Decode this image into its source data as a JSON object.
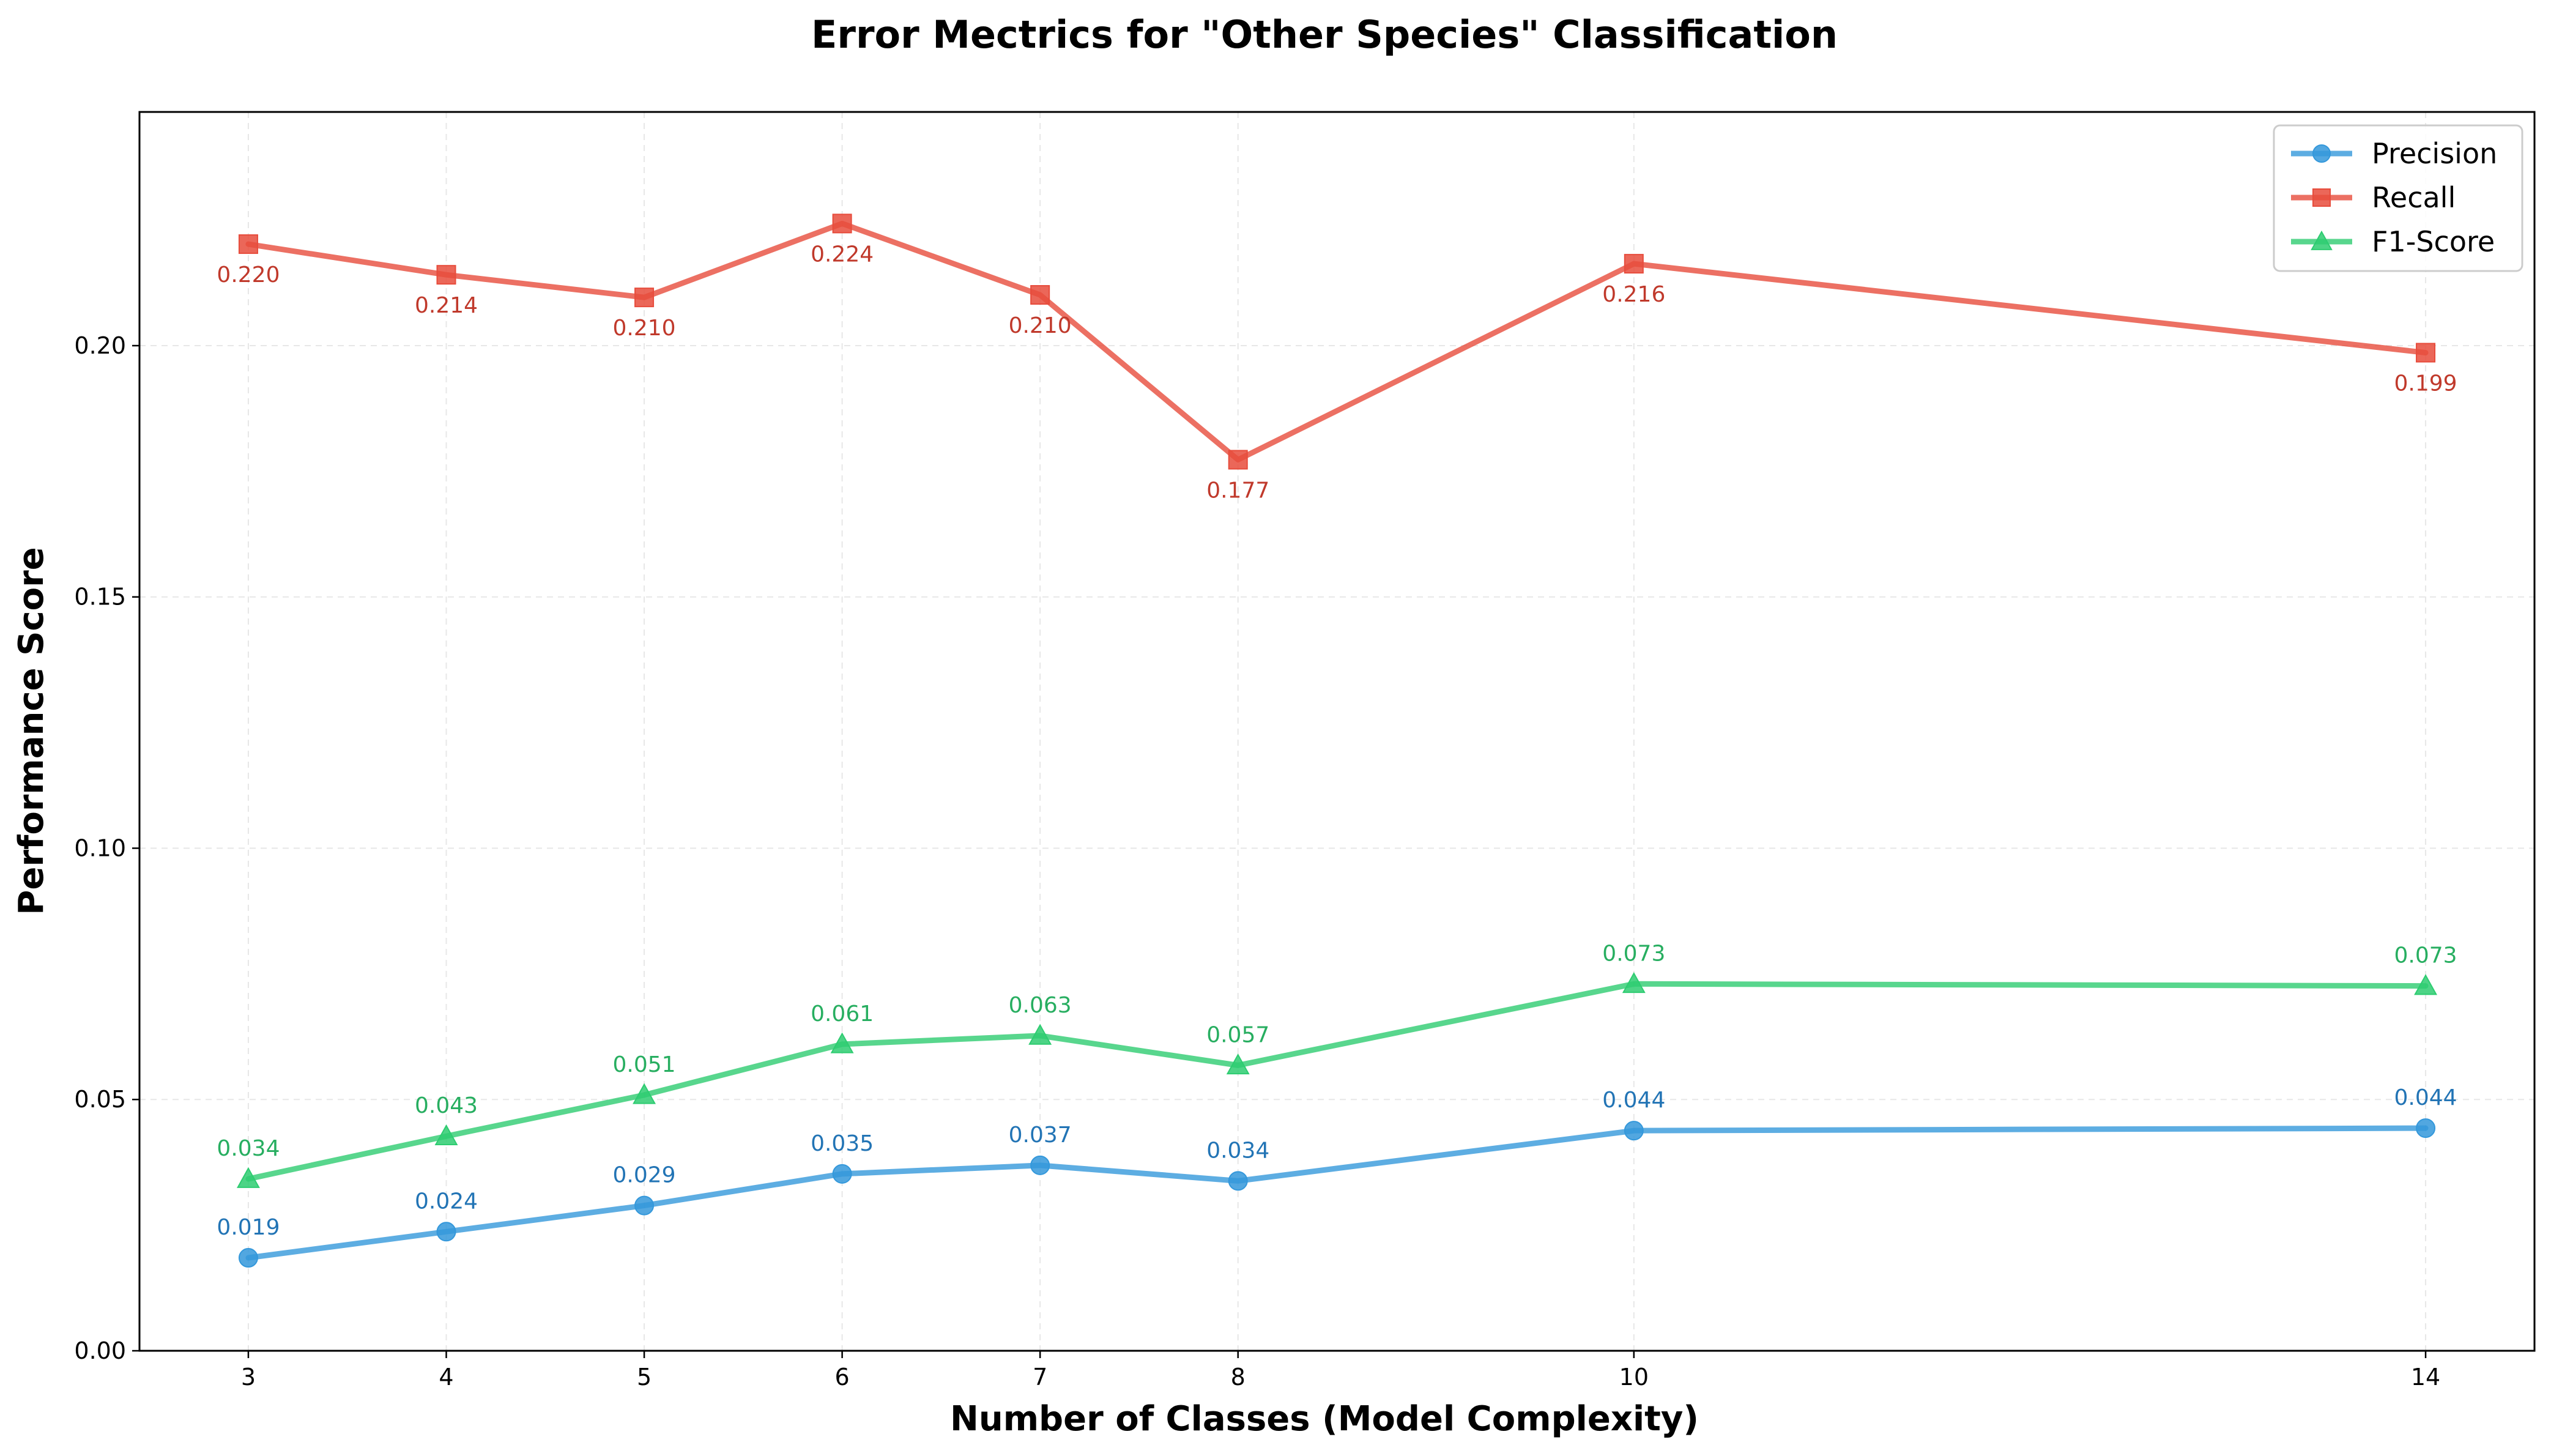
{
  "chart_data": {
    "type": "line",
    "title": "Error Mectrics for \"Other Species\" Classification",
    "xlabel": "Number of Classes (Model Complexity)",
    "ylabel": "Performance Score",
    "x": [
      3,
      4,
      5,
      6,
      7,
      8,
      10,
      14
    ],
    "xlim": [
      2.45,
      14.55
    ],
    "ylim": [
      0,
      0.2465
    ],
    "yticks": [
      0.0,
      0.05,
      0.1,
      0.15,
      0.2
    ],
    "ytick_labels": [
      "0.00",
      "0.05",
      "0.10",
      "0.15",
      "0.20"
    ],
    "xtick_labels": [
      "3",
      "4",
      "5",
      "6",
      "7",
      "8",
      "10",
      "14"
    ],
    "grid": true,
    "legend_position": "top-right",
    "series": [
      {
        "name": "Precision",
        "marker": "circle",
        "color": "#3498db",
        "label_color": "#2274b5",
        "label_position": "above",
        "values": [
          0.0185,
          0.0237,
          0.0289,
          0.0352,
          0.0369,
          0.0338,
          0.0438,
          0.0443
        ],
        "labels": [
          "0.019",
          "0.024",
          "0.029",
          "0.035",
          "0.037",
          "0.034",
          "0.044",
          "0.044"
        ]
      },
      {
        "name": "Recall",
        "marker": "square",
        "color": "#e74c3c",
        "label_color": "#c0392b",
        "label_position": "below",
        "values": [
          0.2202,
          0.2141,
          0.2096,
          0.2243,
          0.2101,
          0.1773,
          0.2163,
          0.1986
        ],
        "labels": [
          "0.220",
          "0.214",
          "0.210",
          "0.224",
          "0.210",
          "0.177",
          "0.216",
          "0.199"
        ]
      },
      {
        "name": "F1-Score",
        "marker": "triangle",
        "color": "#2ecc71",
        "label_color": "#27ae60",
        "label_position": "above",
        "values": [
          0.0342,
          0.0427,
          0.0509,
          0.061,
          0.0627,
          0.0568,
          0.073,
          0.0726
        ],
        "labels": [
          "0.034",
          "0.043",
          "0.051",
          "0.061",
          "0.063",
          "0.057",
          "0.073",
          "0.073"
        ]
      }
    ]
  }
}
